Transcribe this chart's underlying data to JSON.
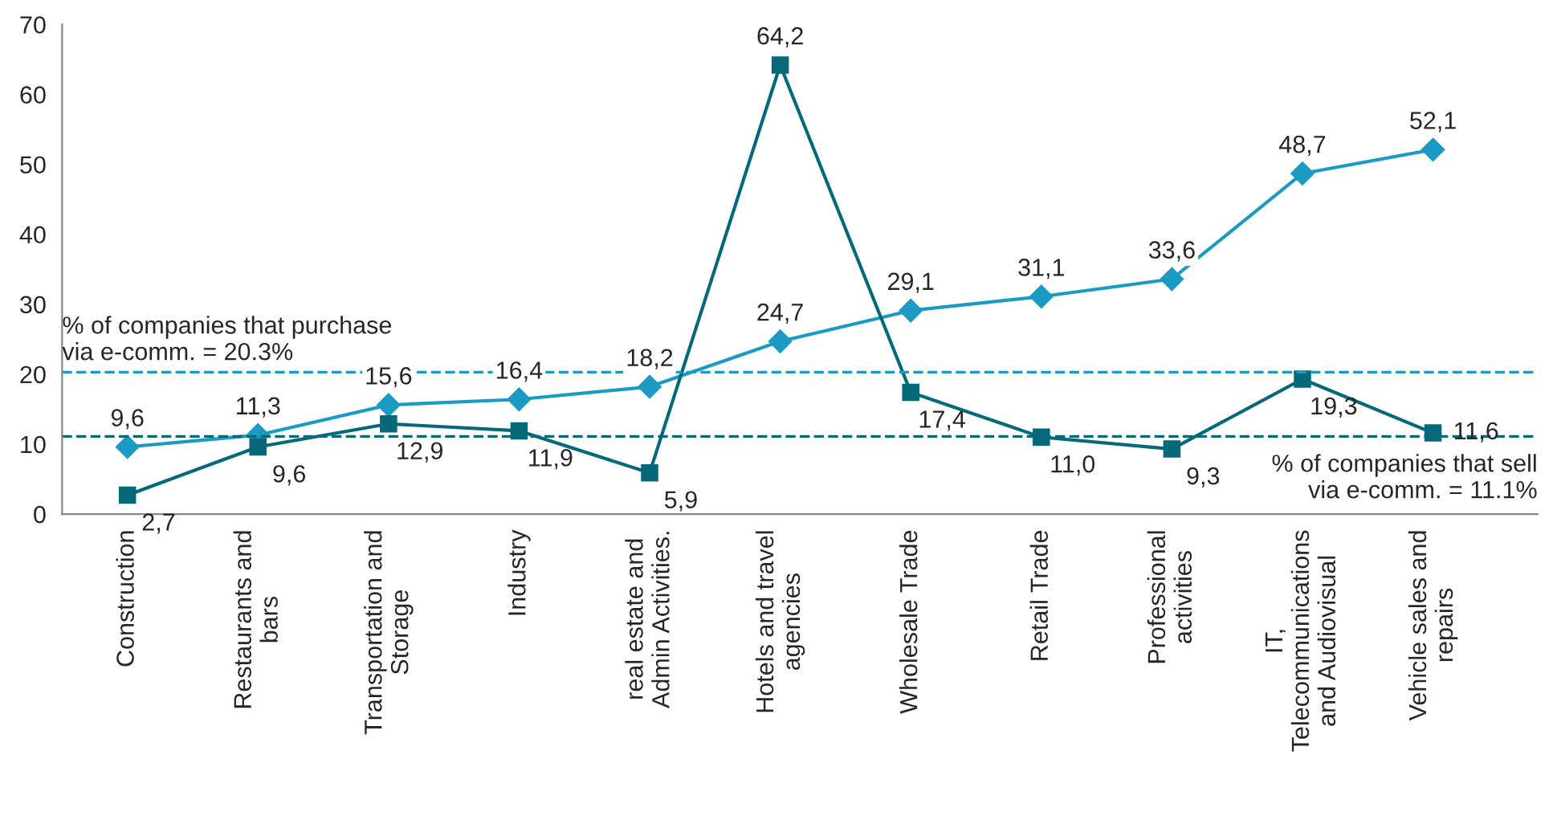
{
  "chart_data": {
    "type": "line",
    "categories": [
      "Construction",
      "Restaurants and\nbars",
      "Transportation and\nStorage",
      "Industry",
      "real estate and\nAdmin Activities.",
      "Hotels and travel\nagencies",
      "Wholesale Trade",
      "Retail Trade",
      "Professional\nactivities",
      "IT,\nTelecommunications\nand Audiovisual",
      "Vehicle sales and\nrepairs"
    ],
    "series": [
      {
        "color": "#1b9bc4",
        "marker": "diamond",
        "values": [
          9.6,
          11.3,
          15.6,
          16.4,
          18.2,
          24.7,
          29.1,
          31.1,
          33.6,
          48.7,
          52.1
        ],
        "value_labels": [
          "9,6",
          "11,3",
          "15,6",
          "16,4",
          "18,2",
          "24,7",
          "29,1",
          "31,1",
          "33,6",
          "48,7",
          "52,1"
        ]
      },
      {
        "color": "#05697a",
        "marker": "square",
        "values": [
          2.7,
          9.6,
          12.9,
          11.9,
          5.9,
          64.2,
          17.4,
          11.0,
          9.3,
          19.3,
          11.6
        ],
        "value_labels": [
          "2,7",
          "9,6",
          "12,9",
          "11,9",
          "5,9",
          "64,2",
          "17,4",
          "11,0",
          "9,3",
          "19,3",
          "11,6"
        ]
      }
    ],
    "ylim": [
      0,
      70
    ],
    "yticks": [
      0,
      10,
      20,
      30,
      40,
      50,
      60,
      70
    ],
    "grid": false,
    "line_style": "solid",
    "ref_lines": [
      {
        "axis": "y",
        "value": 20.3,
        "label": "% of companies that purchase\nvia e-comm. = 20.3%",
        "color": "#1b9bc4",
        "line_style": "dashed"
      },
      {
        "axis": "y",
        "value": 11.1,
        "label": "% of companies that sell\nvia e-comm. = 11.1%",
        "color": "#05697a",
        "line_style": "dashed"
      }
    ]
  }
}
